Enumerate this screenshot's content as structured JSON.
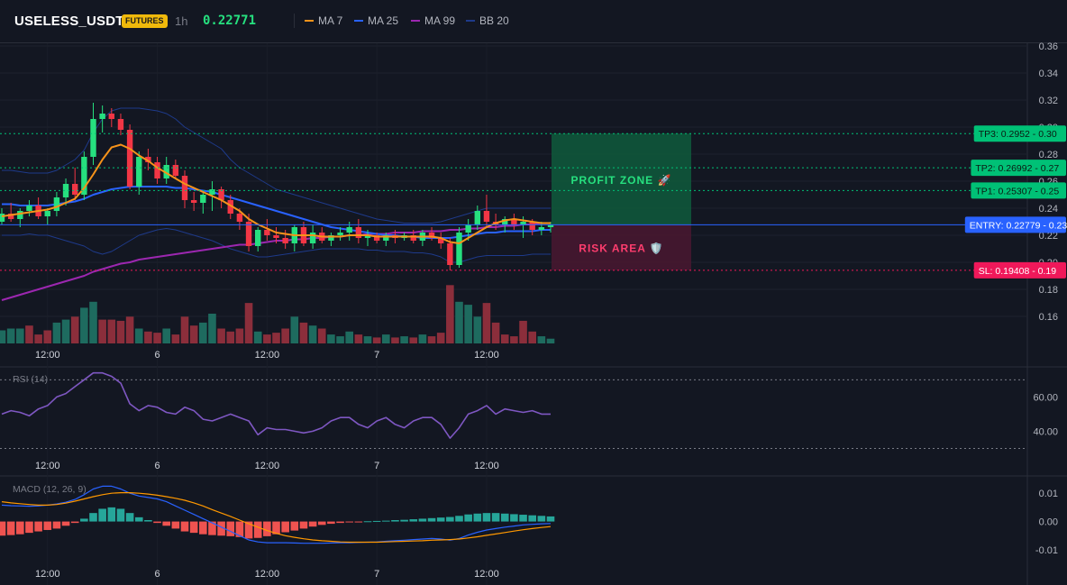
{
  "header": {
    "symbol": "USELESS_USDT",
    "badge": "FUTURES",
    "timeframe": "1h",
    "last_price": "0.22771",
    "legend": [
      {
        "label": "MA 7",
        "color": "#f7931a"
      },
      {
        "label": "MA 25",
        "color": "#2962ff"
      },
      {
        "label": "MA 99",
        "color": "#9c27b0"
      },
      {
        "label": "BB 20",
        "color": "#1e3a8a"
      }
    ]
  },
  "colors": {
    "up": "#26e07f",
    "down": "#f23645",
    "vol_up": "#1e6b5f",
    "vol_down": "#8b2e3b",
    "ma7": "#f7931a",
    "ma25": "#2962ff",
    "ma99": "#9c27b0",
    "bb": "#1e3a8a",
    "rsi": "#7e57c2"
  },
  "chart_data": [
    {
      "type": "candlestick",
      "name": "price",
      "x_ticks": [
        "12:00",
        "6",
        "12:00",
        "7",
        "12:00"
      ],
      "y_ticks": [
        "0.36",
        "0.34",
        "0.32",
        "0.30",
        "0.28",
        "0.26",
        "0.24",
        "0.22",
        "0.20",
        "0.18",
        "0.16"
      ],
      "ylim": [
        0.14,
        0.362
      ],
      "candles": [
        [
          0.23,
          0.24,
          0.228,
          0.236
        ],
        [
          0.236,
          0.244,
          0.23,
          0.232
        ],
        [
          0.232,
          0.24,
          0.226,
          0.238
        ],
        [
          0.238,
          0.246,
          0.234,
          0.242
        ],
        [
          0.242,
          0.248,
          0.232,
          0.234
        ],
        [
          0.234,
          0.24,
          0.228,
          0.238
        ],
        [
          0.238,
          0.252,
          0.234,
          0.248
        ],
        [
          0.248,
          0.262,
          0.242,
          0.258
        ],
        [
          0.258,
          0.27,
          0.246,
          0.25
        ],
        [
          0.25,
          0.282,
          0.246,
          0.278
        ],
        [
          0.278,
          0.318,
          0.272,
          0.306
        ],
        [
          0.306,
          0.316,
          0.296,
          0.31
        ],
        [
          0.31,
          0.314,
          0.3,
          0.306
        ],
        [
          0.306,
          0.31,
          0.294,
          0.298
        ],
        [
          0.298,
          0.302,
          0.254,
          0.256
        ],
        [
          0.256,
          0.282,
          0.25,
          0.278
        ],
        [
          0.278,
          0.284,
          0.268,
          0.274
        ],
        [
          0.274,
          0.278,
          0.258,
          0.262
        ],
        [
          0.262,
          0.278,
          0.258,
          0.272
        ],
        [
          0.272,
          0.276,
          0.262,
          0.264
        ],
        [
          0.264,
          0.268,
          0.24,
          0.246
        ],
        [
          0.246,
          0.252,
          0.238,
          0.244
        ],
        [
          0.244,
          0.252,
          0.236,
          0.25
        ],
        [
          0.25,
          0.26,
          0.238,
          0.254
        ],
        [
          0.254,
          0.256,
          0.24,
          0.246
        ],
        [
          0.246,
          0.25,
          0.232,
          0.236
        ],
        [
          0.236,
          0.24,
          0.224,
          0.23
        ],
        [
          0.23,
          0.236,
          0.208,
          0.212
        ],
        [
          0.212,
          0.226,
          0.208,
          0.224
        ],
        [
          0.224,
          0.232,
          0.216,
          0.22
        ],
        [
          0.22,
          0.226,
          0.214,
          0.218
        ],
        [
          0.218,
          0.224,
          0.21,
          0.214
        ],
        [
          0.214,
          0.228,
          0.208,
          0.226
        ],
        [
          0.226,
          0.23,
          0.212,
          0.214
        ],
        [
          0.214,
          0.228,
          0.21,
          0.222
        ],
        [
          0.222,
          0.226,
          0.214,
          0.216
        ],
        [
          0.216,
          0.222,
          0.212,
          0.22
        ],
        [
          0.22,
          0.226,
          0.216,
          0.222
        ],
        [
          0.222,
          0.23,
          0.216,
          0.226
        ],
        [
          0.226,
          0.232,
          0.214,
          0.218
        ],
        [
          0.218,
          0.224,
          0.212,
          0.22
        ],
        [
          0.22,
          0.222,
          0.214,
          0.216
        ],
        [
          0.216,
          0.222,
          0.212,
          0.22
        ],
        [
          0.22,
          0.224,
          0.214,
          0.218
        ],
        [
          0.218,
          0.222,
          0.216,
          0.22
        ],
        [
          0.22,
          0.224,
          0.214,
          0.216
        ],
        [
          0.216,
          0.224,
          0.212,
          0.222
        ],
        [
          0.222,
          0.226,
          0.216,
          0.218
        ],
        [
          0.218,
          0.222,
          0.21,
          0.214
        ],
        [
          0.214,
          0.218,
          0.194,
          0.198
        ],
        [
          0.198,
          0.226,
          0.196,
          0.222
        ],
        [
          0.222,
          0.232,
          0.216,
          0.228
        ],
        [
          0.228,
          0.242,
          0.224,
          0.238
        ],
        [
          0.238,
          0.25,
          0.226,
          0.23
        ],
        [
          0.23,
          0.236,
          0.224,
          0.228
        ],
        [
          0.228,
          0.234,
          0.222,
          0.232
        ],
        [
          0.232,
          0.236,
          0.224,
          0.228
        ],
        [
          0.228,
          0.234,
          0.218,
          0.23
        ],
        [
          0.23,
          0.232,
          0.22,
          0.224
        ],
        [
          0.224,
          0.23,
          0.22,
          0.226
        ],
        [
          0.226,
          0.23,
          0.222,
          0.228
        ]
      ],
      "volumes": [
        [
          0.22,
          1
        ],
        [
          0.25,
          1
        ],
        [
          0.25,
          1
        ],
        [
          0.3,
          0
        ],
        [
          0.15,
          0
        ],
        [
          0.22,
          0
        ],
        [
          0.35,
          1
        ],
        [
          0.4,
          1
        ],
        [
          0.45,
          0
        ],
        [
          0.6,
          1
        ],
        [
          0.7,
          1
        ],
        [
          0.4,
          0
        ],
        [
          0.4,
          0
        ],
        [
          0.38,
          0
        ],
        [
          0.45,
          0
        ],
        [
          0.25,
          1
        ],
        [
          0.2,
          0
        ],
        [
          0.18,
          0
        ],
        [
          0.25,
          1
        ],
        [
          0.15,
          0
        ],
        [
          0.45,
          0
        ],
        [
          0.3,
          0
        ],
        [
          0.35,
          1
        ],
        [
          0.5,
          1
        ],
        [
          0.25,
          0
        ],
        [
          0.2,
          0
        ],
        [
          0.25,
          0
        ],
        [
          0.68,
          0
        ],
        [
          0.2,
          1
        ],
        [
          0.15,
          0
        ],
        [
          0.18,
          0
        ],
        [
          0.25,
          0
        ],
        [
          0.45,
          1
        ],
        [
          0.35,
          0
        ],
        [
          0.3,
          1
        ],
        [
          0.25,
          0
        ],
        [
          0.15,
          1
        ],
        [
          0.12,
          1
        ],
        [
          0.2,
          1
        ],
        [
          0.15,
          0
        ],
        [
          0.12,
          1
        ],
        [
          0.1,
          0
        ],
        [
          0.15,
          1
        ],
        [
          0.1,
          0
        ],
        [
          0.12,
          1
        ],
        [
          0.1,
          0
        ],
        [
          0.15,
          1
        ],
        [
          0.12,
          0
        ],
        [
          0.18,
          0
        ],
        [
          0.98,
          0
        ],
        [
          0.7,
          1
        ],
        [
          0.65,
          1
        ],
        [
          0.45,
          1
        ],
        [
          0.68,
          0
        ],
        [
          0.35,
          0
        ],
        [
          0.15,
          0
        ],
        [
          0.12,
          0
        ],
        [
          0.38,
          0
        ],
        [
          0.2,
          0
        ],
        [
          0.12,
          1
        ],
        [
          0.08,
          1
        ]
      ],
      "ma7": [
        0.234,
        0.235,
        0.236,
        0.237,
        0.238,
        0.239,
        0.241,
        0.244,
        0.247,
        0.255,
        0.265,
        0.276,
        0.285,
        0.287,
        0.284,
        0.279,
        0.275,
        0.27,
        0.266,
        0.262,
        0.258,
        0.255,
        0.252,
        0.249,
        0.246,
        0.242,
        0.238,
        0.232,
        0.228,
        0.225,
        0.222,
        0.221,
        0.22,
        0.22,
        0.22,
        0.219,
        0.219,
        0.219,
        0.22,
        0.22,
        0.22,
        0.219,
        0.219,
        0.219,
        0.219,
        0.219,
        0.219,
        0.219,
        0.218,
        0.215,
        0.214,
        0.218,
        0.222,
        0.226,
        0.229,
        0.231,
        0.232,
        0.231,
        0.23,
        0.229,
        0.229
      ],
      "ma25": [
        0.243,
        0.243,
        0.242,
        0.242,
        0.242,
        0.242,
        0.243,
        0.244,
        0.245,
        0.247,
        0.25,
        0.252,
        0.254,
        0.255,
        0.256,
        0.256,
        0.256,
        0.256,
        0.256,
        0.255,
        0.255,
        0.254,
        0.253,
        0.252,
        0.25,
        0.248,
        0.246,
        0.244,
        0.242,
        0.24,
        0.238,
        0.236,
        0.234,
        0.232,
        0.23,
        0.228,
        0.226,
        0.225,
        0.224,
        0.223,
        0.222,
        0.221,
        0.22,
        0.22,
        0.219,
        0.219,
        0.218,
        0.218,
        0.218,
        0.218,
        0.219,
        0.22,
        0.221,
        0.222,
        0.222,
        0.223,
        0.223,
        0.223,
        0.223,
        0.224,
        0.224
      ],
      "ma99": [
        0.172,
        0.174,
        0.176,
        0.178,
        0.18,
        0.182,
        0.184,
        0.186,
        0.188,
        0.19,
        0.193,
        0.195,
        0.197,
        0.199,
        0.2,
        0.202,
        0.203,
        0.204,
        0.205,
        0.206,
        0.207,
        0.208,
        0.209,
        0.21,
        0.211,
        0.212,
        0.213,
        0.213,
        0.214,
        0.215,
        0.216,
        0.216,
        0.217,
        0.217,
        0.218,
        0.218,
        0.219,
        0.219,
        0.22,
        0.22,
        0.221,
        0.221,
        0.221,
        0.222,
        0.222,
        0.222,
        0.223,
        0.223,
        0.223,
        0.224,
        0.224,
        0.225,
        0.225,
        0.226,
        0.226,
        0.227,
        0.227,
        0.228,
        0.228,
        0.229,
        0.229
      ],
      "bb_upper": [
        0.268,
        0.268,
        0.267,
        0.266,
        0.266,
        0.266,
        0.268,
        0.272,
        0.276,
        0.283,
        0.296,
        0.306,
        0.312,
        0.314,
        0.314,
        0.314,
        0.313,
        0.312,
        0.31,
        0.306,
        0.3,
        0.296,
        0.292,
        0.288,
        0.284,
        0.276,
        0.27,
        0.266,
        0.262,
        0.258,
        0.254,
        0.252,
        0.25,
        0.248,
        0.246,
        0.244,
        0.242,
        0.24,
        0.238,
        0.236,
        0.234,
        0.232,
        0.231,
        0.23,
        0.229,
        0.229,
        0.229,
        0.229,
        0.23,
        0.232,
        0.234,
        0.236,
        0.238,
        0.24,
        0.24,
        0.24,
        0.24,
        0.24,
        0.24,
        0.24,
        0.24
      ],
      "bb_lower": [
        0.22,
        0.22,
        0.22,
        0.221,
        0.22,
        0.22,
        0.218,
        0.216,
        0.214,
        0.212,
        0.208,
        0.206,
        0.208,
        0.212,
        0.216,
        0.22,
        0.222,
        0.224,
        0.225,
        0.224,
        0.222,
        0.22,
        0.218,
        0.216,
        0.213,
        0.21,
        0.208,
        0.206,
        0.204,
        0.204,
        0.205,
        0.206,
        0.207,
        0.208,
        0.209,
        0.21,
        0.21,
        0.21,
        0.21,
        0.21,
        0.209,
        0.209,
        0.208,
        0.208,
        0.208,
        0.207,
        0.207,
        0.206,
        0.204,
        0.2,
        0.2,
        0.202,
        0.204,
        0.205,
        0.205,
        0.205,
        0.205,
        0.205,
        0.206,
        0.206,
        0.206
      ],
      "levels": [
        {
          "label": "TP3: 0.2952",
          "axis": "0.30",
          "value": 0.2952,
          "color": "#00c176",
          "style": "dashed"
        },
        {
          "label": "TP2: 0.26992",
          "axis": "0.27",
          "value": 0.26992,
          "color": "#00c176",
          "style": "dashed"
        },
        {
          "label": "TP1: 0.25307",
          "axis": "0.25",
          "value": 0.25307,
          "color": "#00c176",
          "style": "dashed"
        },
        {
          "label": "ENTRY: 0.22779",
          "axis": "0.23",
          "value": 0.22779,
          "color": "#2962ff",
          "style": "solid"
        },
        {
          "label": "SL: 0.19408",
          "axis": "0.19",
          "value": 0.19408,
          "color": "#f0185a",
          "style": "dashed"
        }
      ],
      "zones": [
        {
          "label": "PROFIT ZONE 🚀",
          "top": 0.2952,
          "bottom": 0.22779,
          "fill": "#0f5a3c",
          "text_color": "#26e07f"
        },
        {
          "label": "RISK AREA 🛡️",
          "top": 0.22779,
          "bottom": 0.19408,
          "fill": "#4a1830",
          "text_color": "#ff3d6e"
        }
      ]
    },
    {
      "type": "line",
      "name": "RSI (14)",
      "y_ticks": [
        "60.00",
        "40.00"
      ],
      "ylim": [
        25,
        77
      ],
      "bands": [
        70,
        30
      ],
      "values": [
        50,
        52,
        51,
        49,
        53,
        55,
        60,
        62,
        66,
        70,
        74,
        74,
        72,
        68,
        56,
        52,
        55,
        54,
        51,
        50,
        54,
        52,
        47,
        46,
        48,
        50,
        48,
        46,
        38,
        42,
        41,
        41,
        40,
        39,
        40,
        42,
        46,
        48,
        48,
        44,
        42,
        46,
        48,
        44,
        42,
        46,
        48,
        48,
        44,
        36,
        42,
        50,
        52,
        55,
        50,
        53,
        52,
        51,
        52,
        50,
        50
      ]
    },
    {
      "type": "bar+line",
      "name": "MACD (12, 26, 9)",
      "y_ticks": [
        "0.01",
        "0.00",
        "-0.01"
      ],
      "ylim": [
        -0.0148,
        0.0158
      ],
      "histogram": [
        -0.005,
        -0.0048,
        -0.0045,
        -0.004,
        -0.0035,
        -0.003,
        -0.0025,
        -0.0015,
        -0.0005,
        0.001,
        0.003,
        0.0045,
        0.005,
        0.0045,
        0.003,
        0.0015,
        0.0005,
        -0.0005,
        -0.0015,
        -0.0025,
        -0.0035,
        -0.004,
        -0.0045,
        -0.0048,
        -0.005,
        -0.0052,
        -0.0055,
        -0.006,
        -0.0058,
        -0.0052,
        -0.0045,
        -0.0038,
        -0.0032,
        -0.0025,
        -0.0018,
        -0.0012,
        -0.0008,
        -0.0005,
        -0.0003,
        -0.0001,
        0.0001,
        0.0002,
        0.0003,
        0.0005,
        0.0006,
        0.0008,
        0.001,
        0.0012,
        0.0014,
        0.0016,
        0.002,
        0.0025,
        0.0028,
        0.003,
        0.003,
        0.0028,
        0.0026,
        0.0024,
        0.0022,
        0.002,
        0.0018
      ],
      "macd": [
        0.0058,
        0.0056,
        0.0055,
        0.0054,
        0.0055,
        0.0058,
        0.0062,
        0.0068,
        0.0078,
        0.0095,
        0.0115,
        0.0125,
        0.0125,
        0.0115,
        0.01,
        0.009,
        0.0085,
        0.008,
        0.007,
        0.0055,
        0.004,
        0.0025,
        0.001,
        -0.0005,
        -0.002,
        -0.0035,
        -0.005,
        -0.0065,
        -0.0072,
        -0.0075,
        -0.0075,
        -0.0075,
        -0.0076,
        -0.0077,
        -0.0077,
        -0.0077,
        -0.0076,
        -0.0075,
        -0.0075,
        -0.0074,
        -0.0073,
        -0.0072,
        -0.007,
        -0.0068,
        -0.0066,
        -0.0064,
        -0.0062,
        -0.006,
        -0.0062,
        -0.0066,
        -0.006,
        -0.0048,
        -0.0038,
        -0.003,
        -0.0025,
        -0.002,
        -0.0016,
        -0.0012,
        -0.001,
        -0.0008,
        -0.0007
      ],
      "signal": [
        0.007,
        0.0066,
        0.0063,
        0.006,
        0.0058,
        0.0058,
        0.006,
        0.0065,
        0.0072,
        0.008,
        0.0088,
        0.0095,
        0.01,
        0.0102,
        0.0102,
        0.01,
        0.0097,
        0.0093,
        0.0088,
        0.0082,
        0.0075,
        0.0066,
        0.0055,
        0.0042,
        0.003,
        0.0018,
        0.0005,
        -0.0008,
        -0.002,
        -0.0032,
        -0.0042,
        -0.005,
        -0.0056,
        -0.0061,
        -0.0065,
        -0.0068,
        -0.007,
        -0.0072,
        -0.0073,
        -0.0073,
        -0.0073,
        -0.0073,
        -0.0072,
        -0.0071,
        -0.007,
        -0.0069,
        -0.0068,
        -0.0066,
        -0.0065,
        -0.0064,
        -0.0062,
        -0.0058,
        -0.0054,
        -0.0049,
        -0.0044,
        -0.0039,
        -0.0034,
        -0.0029,
        -0.0025,
        -0.0021,
        -0.0018
      ]
    }
  ]
}
